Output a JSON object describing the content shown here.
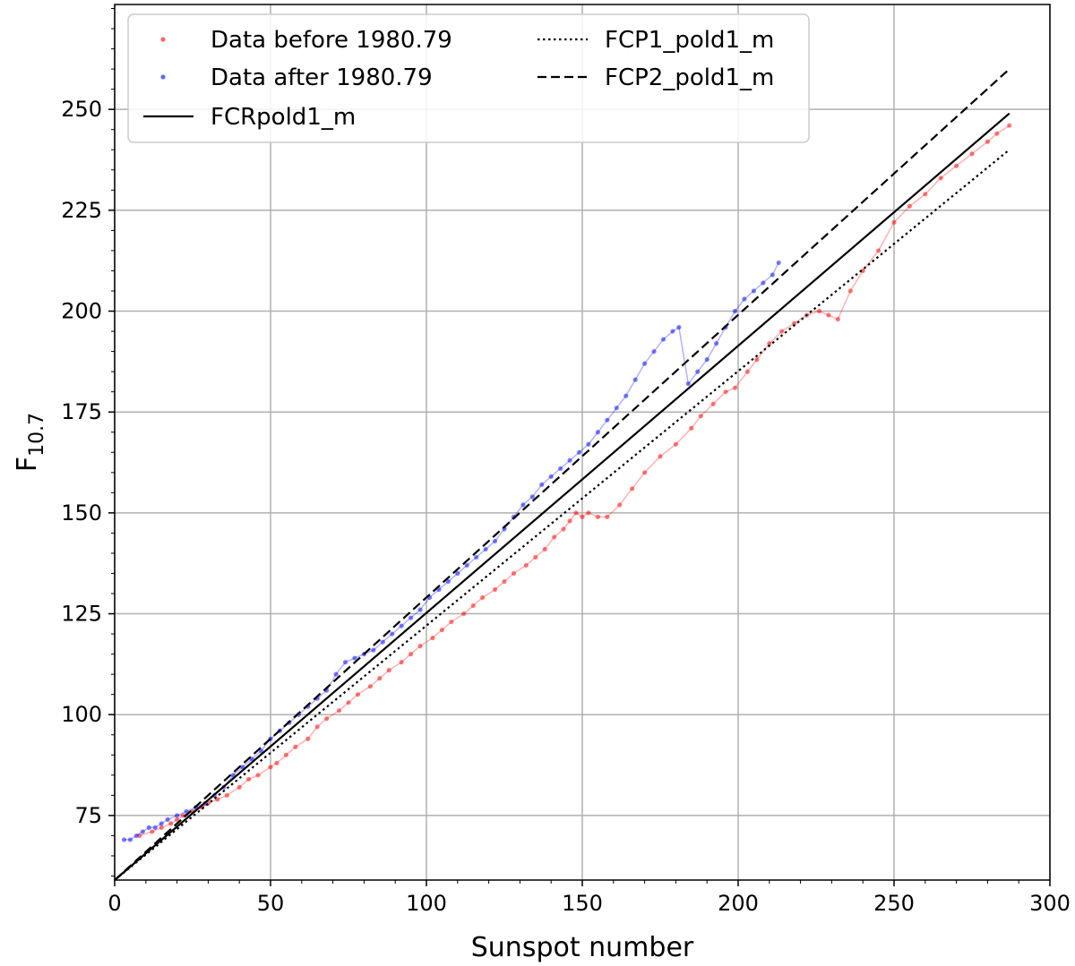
{
  "chart_data": {
    "type": "scatter",
    "xlabel": "Sunspot number",
    "ylabel_main": "F",
    "ylabel_sub": "10.7",
    "xlim": [
      0,
      300
    ],
    "ylim": [
      59,
      276
    ],
    "xticks": [
      0,
      50,
      100,
      150,
      200,
      250,
      300
    ],
    "yticks": [
      75,
      100,
      125,
      150,
      175,
      200,
      225,
      250
    ],
    "xtick_labels": [
      "0",
      "50",
      "100",
      "150",
      "200",
      "250",
      "300"
    ],
    "ytick_labels": [
      "75",
      "100",
      "125",
      "150",
      "175",
      "200",
      "225",
      "250"
    ],
    "grid": true,
    "legend_position": "top-left",
    "series": [
      {
        "name": "Data before 1980.79",
        "style": "markers-connected",
        "color": "#ff0000",
        "points": [
          [
            8,
            70
          ],
          [
            12,
            71
          ],
          [
            15,
            72
          ],
          [
            18,
            73
          ],
          [
            20,
            74
          ],
          [
            22,
            75
          ],
          [
            25,
            76
          ],
          [
            28,
            77
          ],
          [
            30,
            78
          ],
          [
            33,
            79
          ],
          [
            36,
            80
          ],
          [
            40,
            82
          ],
          [
            43,
            84
          ],
          [
            46,
            85
          ],
          [
            50,
            87
          ],
          [
            52,
            88
          ],
          [
            55,
            90
          ],
          [
            58,
            92
          ],
          [
            62,
            94
          ],
          [
            65,
            97
          ],
          [
            68,
            99
          ],
          [
            72,
            101
          ],
          [
            75,
            103
          ],
          [
            78,
            105
          ],
          [
            82,
            107
          ],
          [
            85,
            109
          ],
          [
            88,
            111
          ],
          [
            92,
            113
          ],
          [
            95,
            115
          ],
          [
            98,
            117
          ],
          [
            102,
            119
          ],
          [
            105,
            121
          ],
          [
            108,
            123
          ],
          [
            112,
            125
          ],
          [
            115,
            127
          ],
          [
            118,
            129
          ],
          [
            122,
            131
          ],
          [
            125,
            133
          ],
          [
            128,
            135
          ],
          [
            132,
            137
          ],
          [
            135,
            139
          ],
          [
            138,
            141
          ],
          [
            141,
            144
          ],
          [
            144,
            146
          ],
          [
            146,
            148
          ],
          [
            148,
            150
          ],
          [
            150,
            149
          ],
          [
            152,
            150
          ],
          [
            155,
            149
          ],
          [
            158,
            149
          ],
          [
            162,
            152
          ],
          [
            166,
            156
          ],
          [
            170,
            160
          ],
          [
            175,
            164
          ],
          [
            180,
            167
          ],
          [
            185,
            171
          ],
          [
            188,
            174
          ],
          [
            192,
            177
          ],
          [
            196,
            180
          ],
          [
            199,
            181
          ],
          [
            203,
            185
          ],
          [
            206,
            188
          ],
          [
            210,
            192
          ],
          [
            214,
            195
          ],
          [
            218,
            197
          ],
          [
            222,
            199
          ],
          [
            226,
            200
          ],
          [
            229,
            199
          ],
          [
            232,
            198
          ],
          [
            236,
            205
          ],
          [
            240,
            210
          ],
          [
            245,
            215
          ],
          [
            250,
            222
          ],
          [
            255,
            226
          ],
          [
            260,
            229
          ],
          [
            265,
            233
          ],
          [
            270,
            236
          ],
          [
            275,
            239
          ],
          [
            280,
            242
          ],
          [
            283,
            244
          ],
          [
            287,
            246
          ]
        ]
      },
      {
        "name": "Data after 1980.79",
        "style": "markers-connected",
        "color": "#0000ff",
        "points": [
          [
            3,
            69
          ],
          [
            5,
            69
          ],
          [
            7,
            70
          ],
          [
            9,
            71
          ],
          [
            11,
            72
          ],
          [
            13,
            72
          ],
          [
            15,
            73
          ],
          [
            17,
            74
          ],
          [
            20,
            75
          ],
          [
            23,
            76
          ],
          [
            26,
            77
          ],
          [
            29,
            78
          ],
          [
            32,
            80
          ],
          [
            35,
            82
          ],
          [
            38,
            85
          ],
          [
            41,
            87
          ],
          [
            44,
            89
          ],
          [
            47,
            91
          ],
          [
            50,
            94
          ],
          [
            53,
            96
          ],
          [
            56,
            98
          ],
          [
            59,
            100
          ],
          [
            62,
            102
          ],
          [
            65,
            104
          ],
          [
            68,
            106
          ],
          [
            71,
            110
          ],
          [
            74,
            113
          ],
          [
            77,
            114
          ],
          [
            80,
            115
          ],
          [
            83,
            116
          ],
          [
            86,
            118
          ],
          [
            89,
            120
          ],
          [
            92,
            122
          ],
          [
            95,
            124
          ],
          [
            98,
            126
          ],
          [
            101,
            129
          ],
          [
            104,
            131
          ],
          [
            107,
            133
          ],
          [
            110,
            135
          ],
          [
            113,
            137
          ],
          [
            116,
            139
          ],
          [
            119,
            141
          ],
          [
            122,
            143
          ],
          [
            125,
            146
          ],
          [
            128,
            149
          ],
          [
            131,
            152
          ],
          [
            134,
            154
          ],
          [
            137,
            157
          ],
          [
            140,
            159
          ],
          [
            143,
            161
          ],
          [
            146,
            163
          ],
          [
            149,
            165
          ],
          [
            152,
            167
          ],
          [
            155,
            170
          ],
          [
            158,
            173
          ],
          [
            161,
            176
          ],
          [
            164,
            179
          ],
          [
            167,
            183
          ],
          [
            170,
            187
          ],
          [
            173,
            190
          ],
          [
            176,
            193
          ],
          [
            179,
            195
          ],
          [
            181,
            196
          ],
          [
            184,
            182
          ],
          [
            187,
            185
          ],
          [
            190,
            188
          ],
          [
            193,
            192
          ],
          [
            196,
            196
          ],
          [
            199,
            200
          ],
          [
            202,
            203
          ],
          [
            205,
            205
          ],
          [
            208,
            207
          ],
          [
            211,
            209
          ],
          [
            213,
            212
          ]
        ]
      }
    ],
    "lines": [
      {
        "name": "FCP1_pold1_m",
        "dash": "dotted",
        "color": "#000000",
        "x": [
          0,
          287
        ],
        "y": [
          59,
          240
        ]
      },
      {
        "name": "FCP2_pold1_m",
        "dash": "dashed",
        "color": "#000000",
        "x": [
          0,
          287
        ],
        "y": [
          59,
          260
        ]
      },
      {
        "name": "FCRpold1_m",
        "dash": "solid",
        "color": "#000000",
        "x": [
          0,
          287
        ],
        "y": [
          59,
          249
        ]
      }
    ]
  }
}
